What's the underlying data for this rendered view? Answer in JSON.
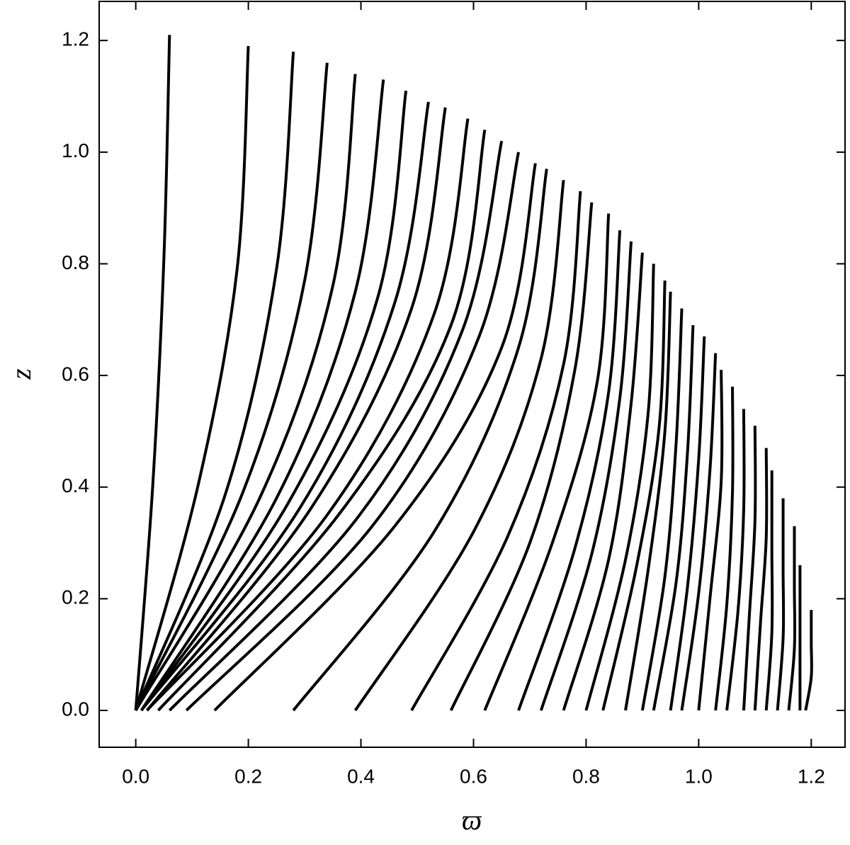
{
  "chart_data": {
    "type": "line",
    "x_label": "ϖ",
    "y_label": "z",
    "color": "#000000",
    "xlim": [
      -0.065,
      1.26
    ],
    "ylim": [
      -0.066,
      1.27
    ],
    "xticks": [
      {
        "value": 0,
        "label": "0.0"
      },
      0.2,
      0.4,
      0.6,
      0.8,
      {
        "value": 1,
        "label": "1.0"
      },
      1.2
    ],
    "yticks": [
      {
        "value": 0,
        "label": "0.0"
      },
      0.2,
      0.4,
      0.6,
      0.8,
      {
        "value": 1,
        "label": "1.0"
      },
      1.2
    ],
    "series": [
      {
        "x": [
          0,
          0.03,
          0.05,
          0.06
        ],
        "values": [
          0,
          0.4,
          0.81,
          1.21
        ]
      },
      {
        "x": [
          0,
          0.11,
          0.18,
          0.2
        ],
        "values": [
          0,
          0.4,
          0.79,
          1.19
        ]
      },
      {
        "x": [
          0,
          0.16,
          0.25,
          0.28
        ],
        "values": [
          0,
          0.39,
          0.79,
          1.18
        ]
      },
      {
        "x": [
          0,
          0.19,
          0.3,
          0.34
        ],
        "values": [
          0,
          0.39,
          0.77,
          1.16
        ]
      },
      {
        "x": [
          0,
          0.22,
          0.35,
          0.39
        ],
        "values": [
          0,
          0.38,
          0.76,
          1.14
        ]
      },
      {
        "x": [
          0.01,
          0.25,
          0.39,
          0.44
        ],
        "values": [
          0,
          0.38,
          0.75,
          1.13
        ]
      },
      {
        "x": [
          0.01,
          0.27,
          0.43,
          0.48
        ],
        "values": [
          0,
          0.37,
          0.74,
          1.11
        ]
      },
      {
        "x": [
          0.01,
          0.29,
          0.46,
          0.52
        ],
        "values": [
          0,
          0.36,
          0.73,
          1.09
        ]
      },
      {
        "x": [
          0.02,
          0.31,
          0.49,
          0.55
        ],
        "values": [
          0,
          0.36,
          0.72,
          1.08
        ]
      },
      {
        "x": [
          0.02,
          0.34,
          0.53,
          0.59
        ],
        "values": [
          0,
          0.35,
          0.71,
          1.06
        ]
      },
      {
        "x": [
          0.04,
          0.36,
          0.56,
          0.62
        ],
        "values": [
          0,
          0.35,
          0.69,
          1.04
        ]
      },
      {
        "x": [
          0.06,
          0.39,
          0.58,
          0.65
        ],
        "values": [
          0,
          0.34,
          0.68,
          1.02
        ]
      },
      {
        "x": [
          0.09,
          0.42,
          0.61,
          0.68
        ],
        "values": [
          0,
          0.33,
          0.67,
          1.0
        ]
      },
      {
        "x": [
          0.14,
          0.46,
          0.65,
          0.71
        ],
        "values": [
          0,
          0.33,
          0.65,
          0.98
        ]
      },
      {
        "x": [
          0.28,
          0.53,
          0.68,
          0.73
        ],
        "values": [
          0,
          0.32,
          0.65,
          0.97
        ]
      },
      {
        "x": [
          0.39,
          0.6,
          0.72,
          0.76
        ],
        "values": [
          0,
          0.32,
          0.63,
          0.95
        ]
      },
      {
        "x": [
          0.49,
          0.66,
          0.76,
          0.79
        ],
        "values": [
          0,
          0.31,
          0.62,
          0.93
        ]
      },
      {
        "x": [
          0.56,
          0.7,
          0.78,
          0.81
        ],
        "values": [
          0,
          0.3,
          0.61,
          0.91
        ]
      },
      {
        "x": [
          0.62,
          0.74,
          0.82,
          0.84
        ],
        "values": [
          0,
          0.3,
          0.59,
          0.89
        ]
      },
      {
        "x": [
          0.68,
          0.78,
          0.84,
          0.86
        ],
        "values": [
          0,
          0.29,
          0.57,
          0.86
        ]
      },
      {
        "x": [
          0.72,
          0.81,
          0.86,
          0.88
        ],
        "values": [
          0,
          0.28,
          0.56,
          0.84
        ]
      },
      {
        "x": [
          0.76,
          0.84,
          0.88,
          0.9
        ],
        "values": [
          0,
          0.27,
          0.55,
          0.82
        ]
      },
      {
        "x": [
          0.8,
          0.87,
          0.91,
          0.92
        ],
        "values": [
          0,
          0.27,
          0.53,
          0.8
        ]
      },
      {
        "x": [
          0.83,
          0.89,
          0.93,
          0.94
        ],
        "values": [
          0,
          0.26,
          0.51,
          0.77
        ]
      },
      {
        "x": [
          0.87,
          0.91,
          0.94,
          0.95
        ],
        "values": [
          0,
          0.25,
          0.5,
          0.75
        ]
      },
      {
        "x": [
          0.9,
          0.94,
          0.96,
          0.97
        ],
        "values": [
          0,
          0.24,
          0.48,
          0.72
        ]
      },
      {
        "x": [
          0.92,
          0.96,
          0.98,
          0.99
        ],
        "values": [
          0,
          0.23,
          0.46,
          0.69
        ]
      },
      {
        "x": [
          0.95,
          0.98,
          1.0,
          1.01
        ],
        "values": [
          0,
          0.22,
          0.45,
          0.67
        ]
      },
      {
        "x": [
          0.97,
          1.0,
          1.02,
          1.03
        ],
        "values": [
          0,
          0.21,
          0.43,
          0.64
        ]
      },
      {
        "x": [
          1.0,
          1.02,
          1.04,
          1.04
        ],
        "values": [
          0,
          0.2,
          0.41,
          0.61
        ]
      },
      {
        "x": [
          1.03,
          1.05,
          1.06,
          1.06
        ],
        "values": [
          0,
          0.19,
          0.39,
          0.58
        ]
      },
      {
        "x": [
          1.05,
          1.07,
          1.08,
          1.08
        ],
        "values": [
          0,
          0.18,
          0.36,
          0.54
        ]
      },
      {
        "x": [
          1.08,
          1.09,
          1.1,
          1.1
        ],
        "values": [
          0,
          0.17,
          0.34,
          0.51
        ]
      },
      {
        "x": [
          1.1,
          1.11,
          1.12,
          1.12
        ],
        "values": [
          0,
          0.16,
          0.31,
          0.47
        ]
      },
      {
        "x": [
          1.12,
          1.13,
          1.13,
          1.13
        ],
        "values": [
          0,
          0.14,
          0.29,
          0.43
        ]
      },
      {
        "x": [
          1.14,
          1.15,
          1.15,
          1.15
        ],
        "values": [
          0,
          0.13,
          0.25,
          0.38
        ]
      },
      {
        "x": [
          1.16,
          1.17,
          1.17,
          1.17
        ],
        "values": [
          0,
          0.11,
          0.22,
          0.33
        ]
      },
      {
        "x": [
          1.18,
          1.18,
          1.18,
          1.18
        ],
        "values": [
          0,
          0.09,
          0.17,
          0.26
        ]
      },
      {
        "x": [
          1.19,
          1.2,
          1.2,
          1.2
        ],
        "values": [
          0,
          0.06,
          0.12,
          0.18
        ]
      }
    ]
  }
}
